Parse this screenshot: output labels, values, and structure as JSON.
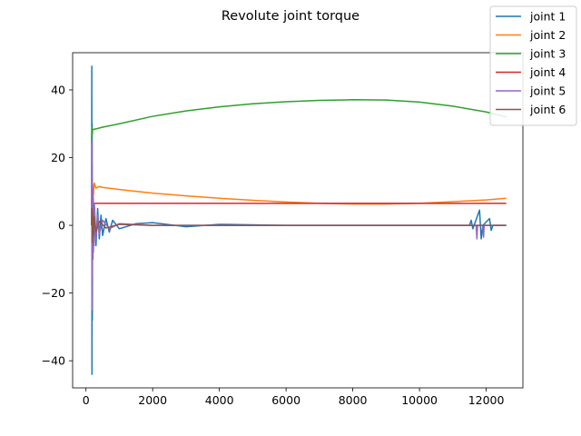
{
  "chart_data": {
    "type": "line",
    "title": "Revolute joint torque",
    "xlabel": "",
    "ylabel": "",
    "xlim": [
      -400,
      13100
    ],
    "ylim": [
      -48,
      51
    ],
    "xticks": [
      0,
      2000,
      4000,
      6000,
      8000,
      10000,
      12000
    ],
    "xtick_labels": [
      "0",
      "2000",
      "4000",
      "6000",
      "8000",
      "10000",
      "12000"
    ],
    "yticks": [
      -40,
      -20,
      0,
      20,
      40
    ],
    "ytick_labels": [
      "−40",
      "−20",
      "0",
      "20",
      "40"
    ],
    "grid": false,
    "legend_position": "top-right",
    "series": [
      {
        "name": "joint 1",
        "color": "#1f77b4",
        "x": [
          170,
          175,
          180,
          185,
          190,
          200,
          220,
          250,
          300,
          350,
          400,
          450,
          500,
          600,
          700,
          800,
          1000,
          1500,
          2000,
          3000,
          4000,
          6000,
          8000,
          10000,
          11500,
          11550,
          11600,
          11800,
          11850,
          11900,
          12100,
          12150,
          12200,
          12300,
          12600
        ],
        "y": [
          0,
          47,
          -44,
          30,
          -28,
          10,
          -8,
          6,
          -6,
          5,
          -4,
          3,
          -3,
          2,
          -2,
          1.5,
          -1,
          0.5,
          0.8,
          -0.4,
          0.3,
          0,
          0,
          0,
          0,
          1.5,
          -1,
          4.5,
          -4,
          0,
          2,
          -1.5,
          0,
          0,
          0
        ]
      },
      {
        "name": "joint 2",
        "color": "#ff7f0e",
        "x": [
          170,
          180,
          200,
          250,
          300,
          400,
          500,
          1000,
          2000,
          3000,
          4000,
          5000,
          6000,
          7000,
          8000,
          9000,
          10000,
          11000,
          12000,
          12600
        ],
        "y": [
          2,
          14,
          6,
          12.5,
          11,
          11.5,
          11.2,
          10.6,
          9.5,
          8.7,
          8,
          7.4,
          6.9,
          6.5,
          6.3,
          6.3,
          6.5,
          7,
          7.5,
          8
        ]
      },
      {
        "name": "joint 3",
        "color": "#2ca02c",
        "x": [
          170,
          180,
          190,
          200,
          300,
          500,
          1000,
          2000,
          3000,
          4000,
          5000,
          6000,
          7000,
          8000,
          9000,
          10000,
          11000,
          12000,
          12600
        ],
        "y": [
          24,
          29,
          27,
          28.3,
          28.5,
          29,
          30,
          32.2,
          33.8,
          35,
          35.9,
          36.5,
          36.9,
          37.1,
          37,
          36.4,
          35.2,
          33.5,
          32
        ]
      },
      {
        "name": "joint 4",
        "color": "#d62728",
        "x": [
          170,
          180,
          200,
          300,
          500,
          1000,
          2000,
          4000,
          6000,
          8000,
          10000,
          12000,
          12600
        ],
        "y": [
          2,
          5,
          6.4,
          6.5,
          6.5,
          6.5,
          6.5,
          6.5,
          6.5,
          6.5,
          6.5,
          6.5,
          6.5
        ]
      },
      {
        "name": "joint 5",
        "color": "#9467bd",
        "x": [
          170,
          175,
          180,
          185,
          190,
          200,
          210,
          220,
          240,
          260,
          300,
          350,
          400,
          500,
          700,
          1000,
          2000,
          4000,
          6000,
          8000,
          10000,
          11700,
          11720,
          11740,
          11900,
          11920,
          11940,
          12600
        ],
        "y": [
          0,
          25,
          -25,
          18,
          -15,
          12,
          -10,
          8,
          -6,
          5,
          -4,
          3,
          -2.5,
          1.5,
          -1,
          0.5,
          0,
          0,
          0,
          0,
          0,
          0,
          -4,
          0,
          0,
          -3.5,
          0,
          0
        ]
      },
      {
        "name": "joint 6",
        "color": "#8c564b",
        "x": [
          170,
          180,
          190,
          200,
          220,
          250,
          300,
          400,
          600,
          1000,
          2000,
          4000,
          8000,
          12600
        ],
        "y": [
          0,
          5,
          -5,
          4,
          -3,
          2.5,
          -2,
          1.2,
          -0.8,
          0.3,
          0,
          0,
          0,
          0
        ]
      }
    ]
  }
}
